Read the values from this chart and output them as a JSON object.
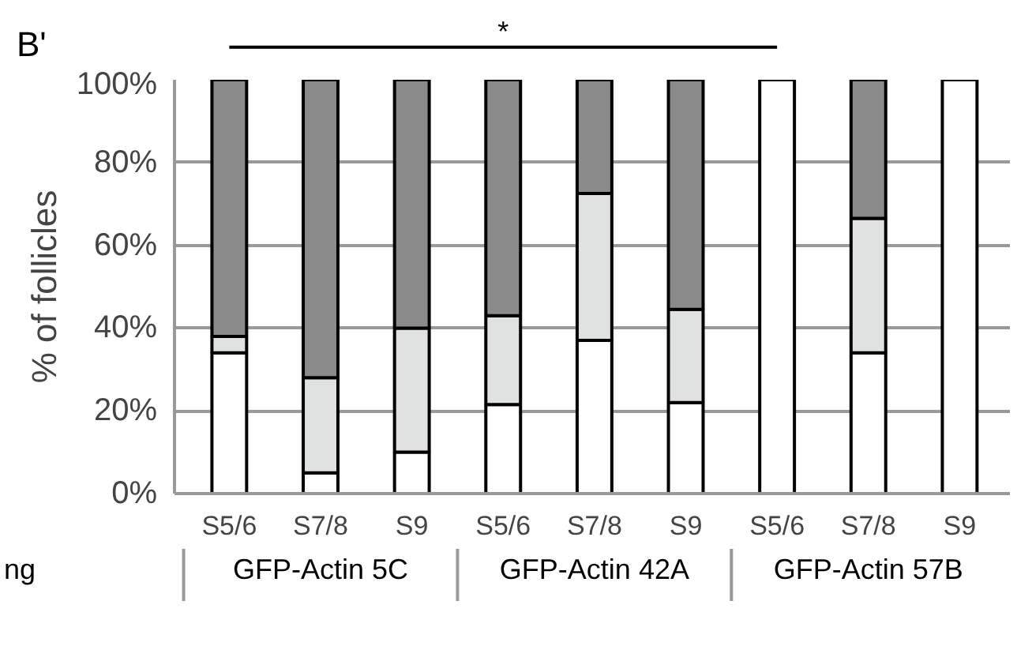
{
  "chart_data": {
    "type": "bar",
    "stacked": true,
    "ylabel": "% of follicles",
    "categories": [
      "S5/6",
      "S7/8",
      "S9",
      "S5/6",
      "S7/8",
      "S9",
      "S5/6",
      "S7/8",
      "S9"
    ],
    "series": [
      {
        "color": "#ffffff",
        "values": [
          34,
          5,
          10,
          21.5,
          37,
          22,
          100,
          34,
          100
        ]
      },
      {
        "color": "#e0e2e2",
        "values": [
          4,
          23,
          30,
          21.5,
          35.5,
          22.5,
          0,
          32.5,
          0
        ]
      },
      {
        "color": "#8a8a8a",
        "values": [
          62,
          72,
          60,
          57,
          27.5,
          55.5,
          0,
          33.5,
          0
        ]
      }
    ],
    "ylim": [
      0,
      100
    ],
    "yticks": [
      {
        "value": 0,
        "label": "0%"
      },
      {
        "value": 20,
        "label": "20%"
      },
      {
        "value": 40,
        "label": "40%"
      },
      {
        "value": 60,
        "label": "60%"
      },
      {
        "value": 80,
        "label": "80%"
      },
      {
        "value": 100,
        "label": "100%"
      }
    ],
    "grid": "y",
    "annotations": [
      "B'",
      "*",
      "GFP-Actin 5C",
      "GFP-Actin 42A",
      "GFP-Actin 57B",
      "ng"
    ]
  }
}
